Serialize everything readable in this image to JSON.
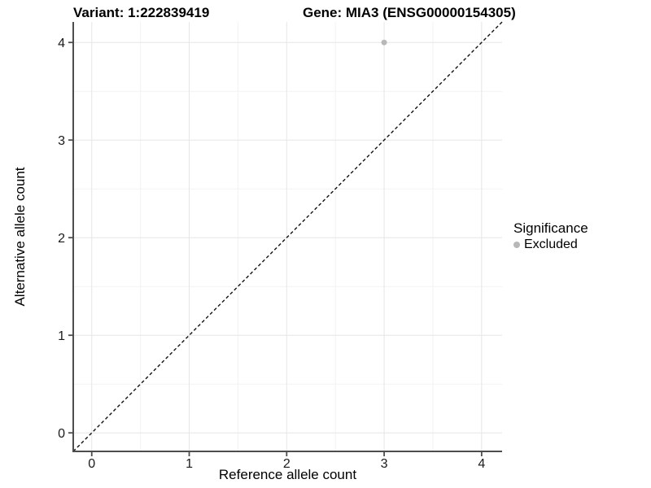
{
  "chart_data": {
    "type": "scatter",
    "title_left": "Variant: 1:222839419",
    "title_right": "Gene: MIA3 (ENSG00000154305)",
    "xlabel": "Reference allele count",
    "ylabel": "Alternative allele count",
    "xlim": [
      -0.19,
      4.21
    ],
    "ylim": [
      -0.19,
      4.21
    ],
    "xticks": [
      0,
      1,
      2,
      3,
      4
    ],
    "yticks": [
      0,
      1,
      2,
      3,
      4
    ],
    "minor_step": 0.5,
    "grid": true,
    "points": [
      {
        "x": 3,
        "y": 4,
        "series": "Excluded"
      }
    ],
    "reference_line": {
      "slope": 1,
      "intercept": 0,
      "style": "dashed",
      "color": "#111111"
    },
    "legend": {
      "title": "Significance",
      "position": "right",
      "items": [
        {
          "label": "Excluded",
          "color": "#b8b8b8"
        }
      ]
    },
    "colors": {
      "point": "#b8b8b8",
      "grid_major": "#e6e6e6",
      "grid_minor": "#f2f2f2",
      "axis": "#4d4d4d",
      "tick_label": "#1a1a1a"
    }
  }
}
